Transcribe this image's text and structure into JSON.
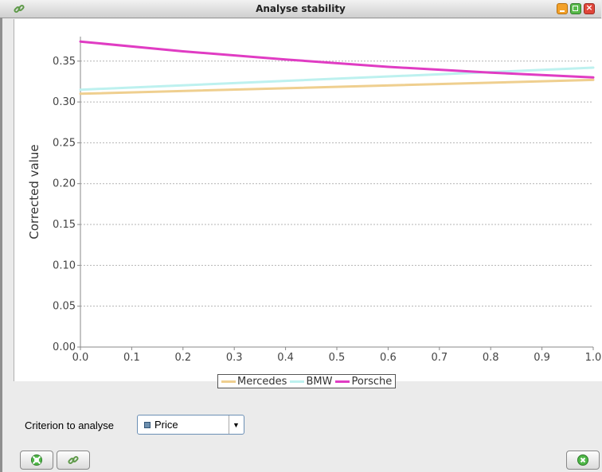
{
  "window": {
    "title": "Analyse stability",
    "icons": {
      "app": "link-icon",
      "minimize": "minimize-icon",
      "maximize": "maximize-icon",
      "close": "close-icon"
    }
  },
  "chart_data": {
    "type": "line",
    "ylabel": "Corrected value",
    "xlim": [
      0.0,
      1.0
    ],
    "ylim": [
      0.0,
      0.38
    ],
    "x_ticks": [
      "0.0",
      "0.1",
      "0.2",
      "0.3",
      "0.4",
      "0.5",
      "0.6",
      "0.7",
      "0.8",
      "0.9",
      "1.0"
    ],
    "y_ticks": [
      "0.00",
      "0.05",
      "0.10",
      "0.15",
      "0.20",
      "0.25",
      "0.30",
      "0.35"
    ],
    "grid": true,
    "legend_position": "bottom-center",
    "series": [
      {
        "name": "Mercedes",
        "color": "#efcf8f",
        "x": [
          0.0,
          1.0
        ],
        "y": [
          0.31,
          0.327
        ]
      },
      {
        "name": "BMW",
        "color": "#bdf1ef",
        "x": [
          0.0,
          1.0
        ],
        "y": [
          0.315,
          0.342
        ]
      },
      {
        "name": "Porsche",
        "color": "#e03cc3",
        "x": [
          0.0,
          0.2,
          0.4,
          0.6,
          0.8,
          1.0
        ],
        "y": [
          0.374,
          0.362,
          0.352,
          0.343,
          0.336,
          0.33
        ]
      }
    ]
  },
  "criterion": {
    "label": "Criterion to analyse",
    "value": "Price",
    "swatch_color": "#6d8fae"
  },
  "buttons": {
    "left": [
      {
        "icon": "lifebuoy-icon"
      },
      {
        "icon": "link-icon"
      }
    ],
    "right": {
      "icon": "cancel-icon"
    }
  }
}
